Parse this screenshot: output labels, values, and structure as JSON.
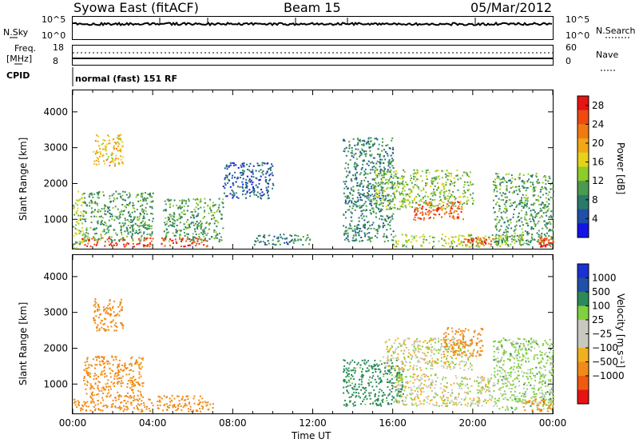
{
  "header": {
    "station": "Syowa East (fitACF)",
    "beam": "Beam 15",
    "date": "05/Mar/2012"
  },
  "status_panels": {
    "nsky_label": "N.Sky",
    "nsearch_label": "N.Search",
    "noise_ticks_left": [
      "10^5",
      "10^0"
    ],
    "noise_ticks_right": [
      "10^5",
      "10^0"
    ],
    "freq_label": "Freq.",
    "freq_unit": "[MHz]",
    "freq_ticks": [
      "18",
      "8"
    ],
    "nave_label": "Nave",
    "nave_ticks": [
      "60",
      "0"
    ],
    "cpid_label": "CPID",
    "cpid_value": "normal (fast) 151 RF"
  },
  "colors": {
    "power_scale": [
      "#1414e6",
      "#1f4fa8",
      "#2a7a6a",
      "#4a9a50",
      "#8fcc2a",
      "#e6d21a",
      "#f0a818",
      "#f07a10",
      "#f04a10",
      "#e61414"
    ],
    "velocity_scale": [
      "#e61414",
      "#f05a10",
      "#f08a18",
      "#f0b020",
      "#c8c8c0",
      "#c8c8c0",
      "#80d040",
      "#2a8a5a",
      "#2050a8",
      "#1a30d0"
    ]
  },
  "chart_data": [
    {
      "type": "heatmap",
      "name": "power",
      "ylabel": "Slant Range [km]",
      "ylim": [
        180,
        4600
      ],
      "yticks": [
        "1000",
        "2000",
        "3000",
        "4000"
      ],
      "xlim": [
        0,
        24
      ],
      "colorbar_label": "Power [dB]",
      "colorbar_ticks": [
        "4",
        "8",
        "12",
        "16",
        "20",
        "24",
        "28"
      ],
      "colorbar_range": [
        0,
        30
      ],
      "regions": [
        {
          "t0": 0.0,
          "t1": 0.5,
          "r0": 200,
          "r1": 1800,
          "v": 14
        },
        {
          "t0": 0.3,
          "t1": 4.0,
          "r0": 250,
          "r1": 500,
          "v": 26
        },
        {
          "t0": 0.5,
          "t1": 4.0,
          "r0": 400,
          "r1": 1800,
          "v": 10
        },
        {
          "t0": 1.0,
          "t1": 2.5,
          "r0": 2500,
          "r1": 3400,
          "v": 18
        },
        {
          "t0": 4.2,
          "t1": 6.8,
          "r0": 250,
          "r1": 500,
          "v": 27
        },
        {
          "t0": 4.5,
          "t1": 7.5,
          "r0": 400,
          "r1": 1600,
          "v": 10
        },
        {
          "t0": 7.5,
          "t1": 10.0,
          "r0": 1600,
          "r1": 2600,
          "v": 5
        },
        {
          "t0": 9.0,
          "t1": 12.0,
          "r0": 300,
          "r1": 600,
          "v": 8
        },
        {
          "t0": 13.5,
          "t1": 16.0,
          "r0": 400,
          "r1": 3300,
          "v": 8
        },
        {
          "t0": 15.0,
          "t1": 20.0,
          "r0": 1300,
          "r1": 2400,
          "v": 13
        },
        {
          "t0": 17.0,
          "t1": 19.5,
          "r0": 1000,
          "r1": 1500,
          "v": 25
        },
        {
          "t0": 16.0,
          "t1": 22.5,
          "r0": 250,
          "r1": 600,
          "v": 14
        },
        {
          "t0": 19.5,
          "t1": 21.0,
          "r0": 300,
          "r1": 500,
          "v": 25
        },
        {
          "t0": 21.0,
          "t1": 24.0,
          "r0": 300,
          "r1": 2300,
          "v": 10
        },
        {
          "t0": 23.2,
          "t1": 24.0,
          "r0": 250,
          "r1": 500,
          "v": 26
        }
      ]
    },
    {
      "type": "heatmap",
      "name": "velocity",
      "ylabel": "Slant Range [km]",
      "ylim": [
        180,
        4600
      ],
      "yticks": [
        "1000",
        "2000",
        "3000",
        "4000"
      ],
      "xlim": [
        0,
        24
      ],
      "xticks": [
        "00:00",
        "04:00",
        "08:00",
        "12:00",
        "16:00",
        "20:00",
        "00:00"
      ],
      "xlabel": "Time UT",
      "colorbar_label": "Velocity [m s⁻¹]",
      "colorbar_ticks": [
        "1000",
        "500",
        "100",
        "25",
        "−25",
        "−100",
        "−500",
        "−1000"
      ],
      "regions": [
        {
          "t0": 0.0,
          "t1": 4.0,
          "r0": 250,
          "r1": 600,
          "v": -300
        },
        {
          "t0": 0.5,
          "t1": 3.5,
          "r0": 600,
          "r1": 1800,
          "v": -150
        },
        {
          "t0": 1.0,
          "t1": 2.5,
          "r0": 2500,
          "r1": 3400,
          "v": -200
        },
        {
          "t0": 4.2,
          "t1": 7.0,
          "r0": 250,
          "r1": 700,
          "v": -300
        },
        {
          "t0": 13.5,
          "t1": 16.5,
          "r0": 400,
          "r1": 1700,
          "v": 150
        },
        {
          "t0": 15.5,
          "t1": 20.0,
          "r0": 1400,
          "r1": 2300,
          "v": 0
        },
        {
          "t0": 16.0,
          "t1": 21.0,
          "r0": 400,
          "r1": 1300,
          "v": 0
        },
        {
          "t0": 18.5,
          "t1": 20.5,
          "r0": 1800,
          "r1": 2600,
          "v": -200
        },
        {
          "t0": 21.0,
          "t1": 24.0,
          "r0": 300,
          "r1": 2300,
          "v": 50
        },
        {
          "t0": 22.5,
          "t1": 24.0,
          "r0": 250,
          "r1": 600,
          "v": -300
        }
      ]
    }
  ]
}
